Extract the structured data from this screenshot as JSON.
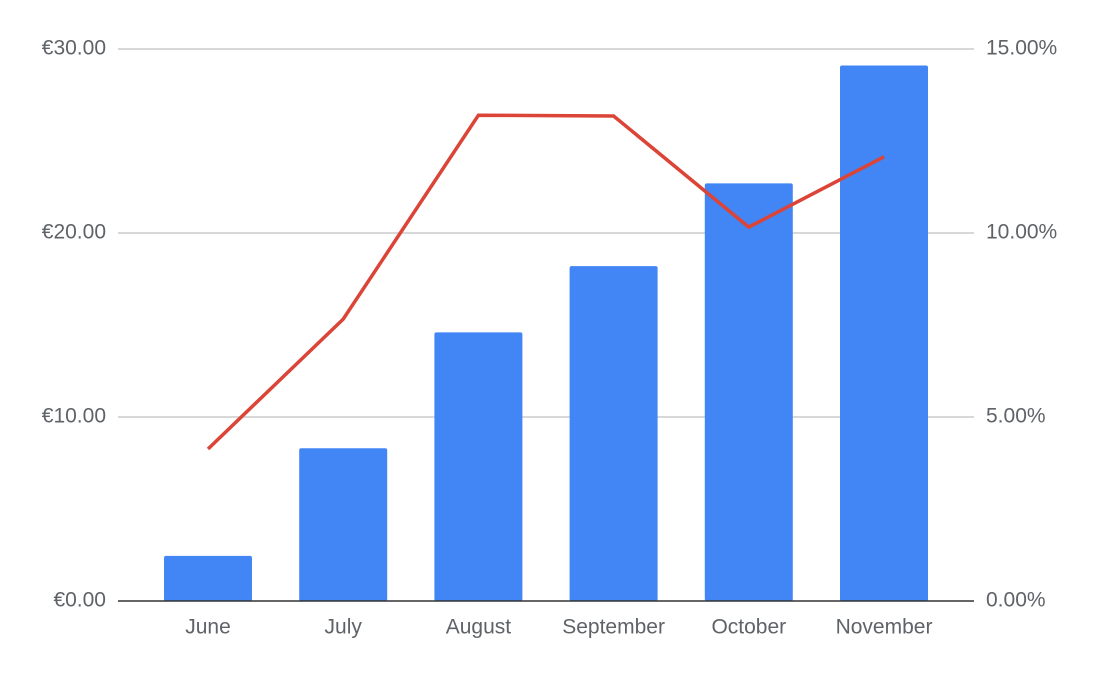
{
  "chart_data": {
    "type": "combo",
    "categories": [
      "June",
      "July",
      "August",
      "September",
      "October",
      "November"
    ],
    "series": [
      {
        "type": "bar",
        "color": "#4285f4",
        "values": [
          2.45,
          8.3,
          14.6,
          18.2,
          22.7,
          29.1
        ]
      },
      {
        "type": "line",
        "color": "#db4437",
        "axis": "y2",
        "values": [
          4.13,
          7.66,
          13.2,
          13.18,
          10.16,
          12.07
        ]
      }
    ],
    "ylim": [
      0,
      30
    ],
    "yticks": [
      {
        "value": 0,
        "label": "€0.00"
      },
      {
        "value": 10,
        "label": "€10.00"
      },
      {
        "value": 20,
        "label": "€20.00"
      },
      {
        "value": 30,
        "label": "€30.00"
      }
    ],
    "y2lim": [
      0,
      15
    ],
    "y2ticks": [
      {
        "value": 0,
        "label": "0.00%"
      },
      {
        "value": 5,
        "label": "5.00%"
      },
      {
        "value": 10,
        "label": "10.00%"
      },
      {
        "value": 15,
        "label": "15.00%"
      }
    ],
    "grid": true
  }
}
